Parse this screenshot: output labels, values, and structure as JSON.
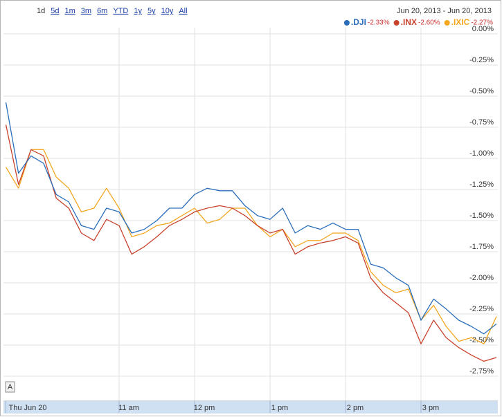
{
  "chart_data": {
    "type": "line",
    "ranges": [
      "1d",
      "5d",
      "1m",
      "3m",
      "6m",
      "YTD",
      "1y",
      "5y",
      "10y",
      "All"
    ],
    "date_range": "Jun 20, 2013 - Jun 20, 2013",
    "annotation": "A",
    "x": [
      570,
      580,
      590,
      600,
      610,
      620,
      630,
      640,
      650,
      660,
      670,
      680,
      690,
      700,
      710,
      720,
      730,
      740,
      750,
      760,
      770,
      780,
      790,
      800,
      810,
      820,
      830,
      840,
      850,
      860,
      870,
      880,
      890,
      900,
      910,
      920,
      930,
      940,
      950,
      960
    ],
    "xlim": [
      570,
      960
    ],
    "xticks": [
      {
        "value": 570,
        "label": "Thu Jun 20"
      },
      {
        "value": 660,
        "label": "11 am"
      },
      {
        "value": 720,
        "label": "12 pm"
      },
      {
        "value": 780,
        "label": "1 pm"
      },
      {
        "value": 840,
        "label": "2 pm"
      },
      {
        "value": 900,
        "label": "3 pm"
      }
    ],
    "ylim": [
      -2.95,
      0.05
    ],
    "yticks": [
      {
        "value": 0,
        "label": "0.00%"
      },
      {
        "value": -0.25,
        "label": "-0.25%"
      },
      {
        "value": -0.5,
        "label": "-0.50%"
      },
      {
        "value": -0.75,
        "label": "-0.75%"
      },
      {
        "value": -1,
        "label": "-1.00%"
      },
      {
        "value": -1.25,
        "label": "-1.25%"
      },
      {
        "value": -1.5,
        "label": "-1.50%"
      },
      {
        "value": -1.75,
        "label": "-1.75%"
      },
      {
        "value": -2,
        "label": "-2.00%"
      },
      {
        "value": -2.25,
        "label": "-2.25%"
      },
      {
        "value": -2.5,
        "label": "-2.50%"
      },
      {
        "value": -2.75,
        "label": "-2.75%"
      }
    ],
    "grid": true,
    "series": [
      {
        "name": ".DJI",
        "change": "-2.33%",
        "color": "#2a6ebb",
        "values": [
          -0.55,
          -1.12,
          -0.98,
          -1.04,
          -1.29,
          -1.35,
          -1.54,
          -1.57,
          -1.4,
          -1.43,
          -1.6,
          -1.57,
          -1.5,
          -1.4,
          -1.4,
          -1.29,
          -1.24,
          -1.26,
          -1.26,
          -1.38,
          -1.46,
          -1.49,
          -1.4,
          -1.6,
          -1.54,
          -1.57,
          -1.52,
          -1.57,
          -1.57,
          -1.85,
          -1.88,
          -1.96,
          -2.02,
          -2.3,
          -2.13,
          -2.21,
          -2.3,
          -2.35,
          -2.41,
          -2.33
        ]
      },
      {
        "name": ".INX",
        "change": "-2.60%",
        "color": "#c8412b",
        "values": [
          -0.73,
          -1.21,
          -0.93,
          -0.98,
          -1.32,
          -1.4,
          -1.6,
          -1.66,
          -1.49,
          -1.54,
          -1.77,
          -1.71,
          -1.63,
          -1.54,
          -1.49,
          -1.43,
          -1.4,
          -1.38,
          -1.4,
          -1.46,
          -1.54,
          -1.6,
          -1.57,
          -1.77,
          -1.71,
          -1.68,
          -1.66,
          -1.63,
          -1.68,
          -1.96,
          -2.08,
          -2.16,
          -2.24,
          -2.49,
          -2.3,
          -2.44,
          -2.52,
          -2.58,
          -2.63,
          -2.6
        ]
      },
      {
        "name": ".IXIC",
        "change": "-2.27%",
        "color": "#f4a620",
        "values": [
          -1.07,
          -1.24,
          -0.93,
          -0.93,
          -1.15,
          -1.24,
          -1.43,
          -1.4,
          -1.24,
          -1.4,
          -1.63,
          -1.6,
          -1.54,
          -1.52,
          -1.46,
          -1.4,
          -1.52,
          -1.49,
          -1.4,
          -1.4,
          -1.54,
          -1.63,
          -1.57,
          -1.71,
          -1.66,
          -1.66,
          -1.6,
          -1.6,
          -1.66,
          -1.91,
          -2.02,
          -2.08,
          -2.05,
          -2.3,
          -2.18,
          -2.35,
          -2.47,
          -2.44,
          -2.49,
          -2.27
        ]
      }
    ]
  }
}
